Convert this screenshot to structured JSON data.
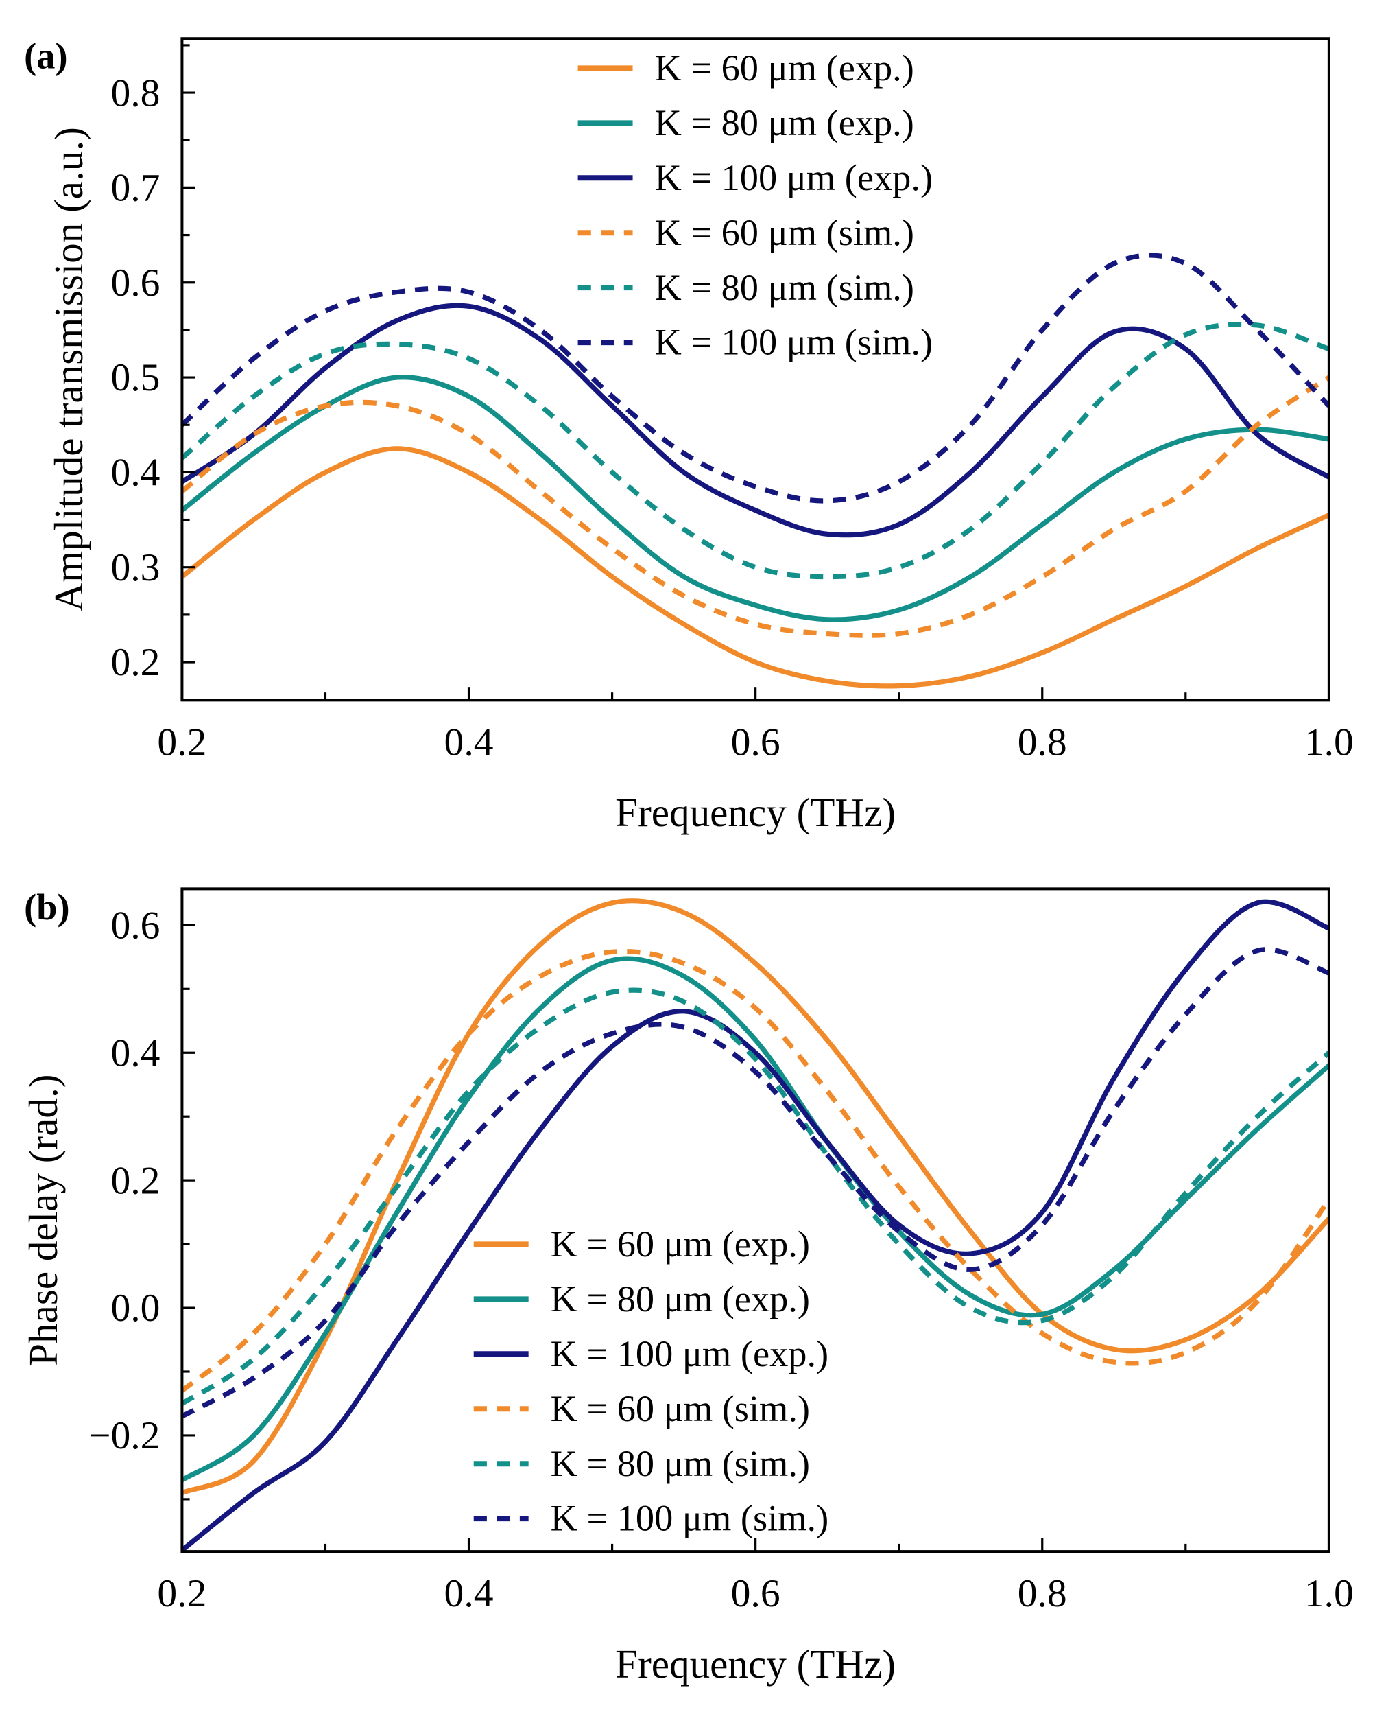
{
  "colors": {
    "k60": "#F08A2A",
    "k80": "#14908A",
    "k100": "#15177E"
  },
  "chart_data": [
    {
      "type": "line",
      "panel_label": "(a)",
      "xlabel": "Frequency (THz)",
      "ylabel": "Amplitude transmission (a.u.)",
      "xlim": [
        0.2,
        1.0
      ],
      "ylim": [
        0.16,
        0.857
      ],
      "grid": false,
      "legend_placement": "top-center",
      "xticks": [
        "0.2",
        "0.4",
        "0.6",
        "0.8",
        "1.0"
      ],
      "yticks": [
        "0.2",
        "0.3",
        "0.4",
        "0.5",
        "0.6",
        "0.7",
        "0.8"
      ],
      "x": [
        0.2,
        0.25,
        0.3,
        0.35,
        0.4,
        0.45,
        0.5,
        0.55,
        0.6,
        0.65,
        0.7,
        0.75,
        0.8,
        0.85,
        0.9,
        0.95,
        1.0
      ],
      "series": [
        {
          "name": "K = 60 μm (exp.)",
          "color": "k60",
          "dash": false,
          "values": [
            0.29,
            0.35,
            0.4,
            0.425,
            0.4,
            0.35,
            0.29,
            0.24,
            0.2,
            0.18,
            0.175,
            0.185,
            0.21,
            0.245,
            0.28,
            0.32,
            0.355
          ]
        },
        {
          "name": "K = 80 μm (exp.)",
          "color": "k80",
          "dash": false,
          "values": [
            0.36,
            0.42,
            0.47,
            0.5,
            0.48,
            0.42,
            0.35,
            0.29,
            0.26,
            0.245,
            0.255,
            0.29,
            0.345,
            0.4,
            0.435,
            0.445,
            0.435
          ]
        },
        {
          "name": "K = 100 μm (exp.)",
          "color": "k100",
          "dash": false,
          "values": [
            0.39,
            0.44,
            0.51,
            0.56,
            0.575,
            0.54,
            0.47,
            0.4,
            0.36,
            0.335,
            0.345,
            0.4,
            0.48,
            0.548,
            0.53,
            0.44,
            0.395
          ]
        },
        {
          "name": "K = 60 μm (sim.)",
          "color": "k60",
          "dash": true,
          "values": [
            0.38,
            0.44,
            0.47,
            0.47,
            0.44,
            0.38,
            0.32,
            0.27,
            0.24,
            0.23,
            0.23,
            0.25,
            0.29,
            0.34,
            0.38,
            0.45,
            0.5
          ]
        },
        {
          "name": "K = 80 μm (sim.)",
          "color": "k80",
          "dash": true,
          "values": [
            0.415,
            0.48,
            0.525,
            0.535,
            0.52,
            0.47,
            0.4,
            0.34,
            0.3,
            0.29,
            0.3,
            0.34,
            0.41,
            0.49,
            0.545,
            0.555,
            0.53
          ]
        },
        {
          "name": "K = 100 μm (sim.)",
          "color": "k100",
          "dash": true,
          "values": [
            0.45,
            0.52,
            0.57,
            0.59,
            0.59,
            0.55,
            0.48,
            0.42,
            0.385,
            0.37,
            0.39,
            0.45,
            0.55,
            0.62,
            0.62,
            0.55,
            0.47
          ]
        }
      ]
    },
    {
      "type": "line",
      "panel_label": "(b)",
      "xlabel": "Frequency (THz)",
      "ylabel": "Phase delay (rad.)",
      "xlim": [
        0.2,
        1.0
      ],
      "ylim": [
        -0.382,
        0.657
      ],
      "grid": false,
      "legend_placement": "bottom-center",
      "xticks": [
        "0.2",
        "0.4",
        "0.6",
        "0.8",
        "1.0"
      ],
      "yticks": [
        "−0.2",
        "0.0",
        "0.2",
        "0.4",
        "0.6"
      ],
      "x": [
        0.2,
        0.25,
        0.3,
        0.35,
        0.4,
        0.45,
        0.5,
        0.55,
        0.6,
        0.65,
        0.7,
        0.75,
        0.8,
        0.85,
        0.9,
        0.95,
        1.0
      ],
      "series": [
        {
          "name": "K = 60 μm (exp.)",
          "color": "k60",
          "dash": false,
          "values": [
            -0.29,
            -0.24,
            -0.05,
            0.2,
            0.43,
            0.57,
            0.635,
            0.62,
            0.54,
            0.42,
            0.27,
            0.12,
            -0.01,
            -0.065,
            -0.05,
            0.02,
            0.14
          ]
        },
        {
          "name": "K = 80 μm (exp.)",
          "color": "k80",
          "dash": false,
          "values": [
            -0.27,
            -0.2,
            -0.04,
            0.15,
            0.33,
            0.47,
            0.545,
            0.52,
            0.42,
            0.26,
            0.12,
            0.02,
            -0.01,
            0.06,
            0.17,
            0.28,
            0.38
          ]
        },
        {
          "name": "K = 100 μm (exp.)",
          "color": "k100",
          "dash": false,
          "values": [
            -0.38,
            -0.29,
            -0.21,
            -0.05,
            0.12,
            0.28,
            0.41,
            0.465,
            0.4,
            0.26,
            0.13,
            0.085,
            0.15,
            0.36,
            0.53,
            0.635,
            0.595
          ]
        },
        {
          "name": "K = 60 μm (sim.)",
          "color": "k60",
          "dash": true,
          "values": [
            -0.13,
            -0.04,
            0.1,
            0.28,
            0.43,
            0.52,
            0.558,
            0.54,
            0.47,
            0.34,
            0.19,
            0.06,
            -0.04,
            -0.085,
            -0.07,
            0.01,
            0.17
          ]
        },
        {
          "name": "K = 80 μm (sim.)",
          "color": "k80",
          "dash": true,
          "values": [
            -0.15,
            -0.08,
            0.04,
            0.19,
            0.34,
            0.44,
            0.495,
            0.48,
            0.39,
            0.24,
            0.1,
            0.0,
            -0.02,
            0.05,
            0.18,
            0.3,
            0.4
          ]
        },
        {
          "name": "K = 100 μm (sim.)",
          "color": "k100",
          "dash": true,
          "values": [
            -0.17,
            -0.11,
            -0.02,
            0.13,
            0.26,
            0.37,
            0.43,
            0.44,
            0.37,
            0.24,
            0.12,
            0.06,
            0.13,
            0.31,
            0.46,
            0.56,
            0.525
          ]
        }
      ]
    }
  ]
}
